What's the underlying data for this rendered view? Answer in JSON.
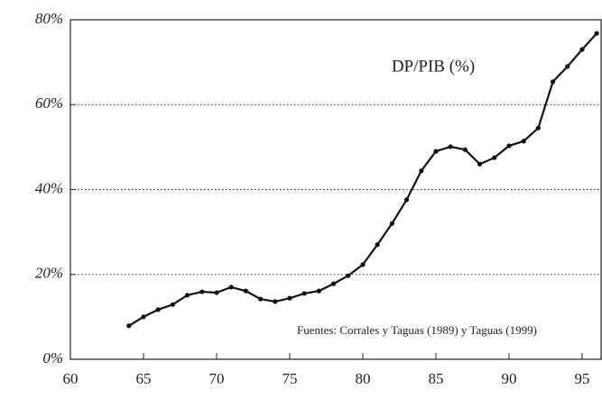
{
  "chart_data": {
    "type": "line",
    "annotations": [
      "DP/PIB (%)",
      "Fuentes:  Corrales y Taguas (1989) y Taguas (1999)"
    ],
    "x": [
      64,
      65,
      66,
      67,
      68,
      69,
      70,
      71,
      72,
      73,
      74,
      75,
      76,
      77,
      78,
      79,
      80,
      81,
      82,
      83,
      84,
      85,
      86,
      87,
      88,
      89,
      90,
      91,
      92,
      93,
      94,
      95,
      96
    ],
    "values": [
      7.9,
      10.0,
      11.7,
      12.9,
      15.1,
      15.9,
      15.7,
      17.0,
      16.1,
      14.2,
      13.6,
      14.4,
      15.5,
      16.1,
      17.8,
      19.7,
      22.3,
      27.0,
      32.0,
      37.6,
      44.4,
      49.0,
      50.1,
      49.4,
      46.0,
      47.5,
      50.3,
      51.4,
      54.5,
      65.4,
      69.0,
      73.0,
      76.8
    ],
    "color": "#111111",
    "xlim": [
      60,
      96.3
    ],
    "xticks": [
      60,
      65,
      70,
      75,
      80,
      85,
      90,
      95
    ],
    "ylim": [
      0,
      80
    ],
    "yticks": [
      {
        "value": 0,
        "label": "0%"
      },
      {
        "value": 20,
        "label": "20%"
      },
      {
        "value": 40,
        "label": "40%"
      },
      {
        "value": 60,
        "label": "60%"
      },
      {
        "value": 80,
        "label": "80%"
      }
    ],
    "grid": true
  }
}
